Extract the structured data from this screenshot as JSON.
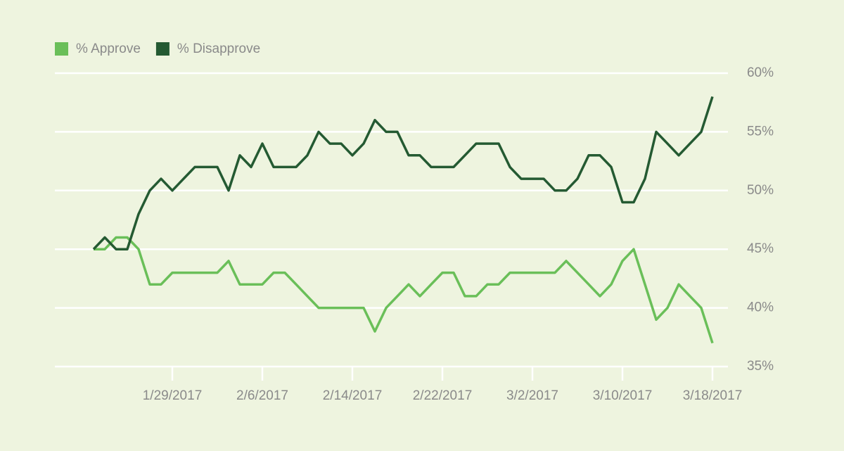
{
  "chart_data": {
    "type": "line",
    "x": [
      "2017-01-22",
      "2017-01-23",
      "2017-01-24",
      "2017-01-25",
      "2017-01-26",
      "2017-01-27",
      "2017-01-28",
      "2017-01-29",
      "2017-01-30",
      "2017-01-31",
      "2017-02-01",
      "2017-02-02",
      "2017-02-03",
      "2017-02-04",
      "2017-02-05",
      "2017-02-06",
      "2017-02-07",
      "2017-02-08",
      "2017-02-09",
      "2017-02-10",
      "2017-02-11",
      "2017-02-12",
      "2017-02-13",
      "2017-02-14",
      "2017-02-15",
      "2017-02-16",
      "2017-02-17",
      "2017-02-18",
      "2017-02-19",
      "2017-02-20",
      "2017-02-21",
      "2017-02-22",
      "2017-02-23",
      "2017-02-24",
      "2017-02-25",
      "2017-02-26",
      "2017-02-27",
      "2017-02-28",
      "2017-03-01",
      "2017-03-02",
      "2017-03-03",
      "2017-03-04",
      "2017-03-05",
      "2017-03-06",
      "2017-03-07",
      "2017-03-08",
      "2017-03-09",
      "2017-03-10",
      "2017-03-11",
      "2017-03-12",
      "2017-03-13",
      "2017-03-14",
      "2017-03-15",
      "2017-03-16",
      "2017-03-17",
      "2017-03-18"
    ],
    "series": [
      {
        "name": "% Approve",
        "color": "#6abf59",
        "values": [
          45,
          45,
          46,
          46,
          45,
          42,
          42,
          43,
          43,
          43,
          43,
          43,
          44,
          42,
          42,
          42,
          43,
          43,
          42,
          41,
          40,
          40,
          40,
          40,
          40,
          38,
          40,
          41,
          42,
          41,
          42,
          43,
          43,
          41,
          41,
          42,
          42,
          43,
          43,
          43,
          43,
          43,
          44,
          43,
          42,
          41,
          42,
          44,
          45,
          42,
          39,
          40,
          42,
          41,
          40,
          37
        ]
      },
      {
        "name": "% Disapprove",
        "color": "#245a32",
        "values": [
          45,
          46,
          45,
          45,
          48,
          50,
          51,
          50,
          51,
          52,
          52,
          52,
          50,
          53,
          52,
          54,
          52,
          52,
          52,
          53,
          55,
          54,
          54,
          53,
          54,
          56,
          55,
          55,
          53,
          53,
          52,
          52,
          52,
          53,
          54,
          54,
          54,
          52,
          51,
          51,
          51,
          50,
          50,
          51,
          53,
          53,
          52,
          49,
          49,
          51,
          55,
          54,
          53,
          54,
          55,
          58
        ]
      }
    ],
    "xlim": [
      "2017-01-19",
      "2017-03-21"
    ],
    "xticks": [
      {
        "value": "2017-01-29",
        "label": "1/29/2017"
      },
      {
        "value": "2017-02-06",
        "label": "2/6/2017"
      },
      {
        "value": "2017-02-14",
        "label": "2/14/2017"
      },
      {
        "value": "2017-02-22",
        "label": "2/22/2017"
      },
      {
        "value": "2017-03-02",
        "label": "3/2/2017"
      },
      {
        "value": "2017-03-10",
        "label": "3/10/2017"
      },
      {
        "value": "2017-03-18",
        "label": "3/18/2017"
      }
    ],
    "ylim": [
      35,
      60
    ],
    "yticks": [
      {
        "value": 35,
        "label": "35%"
      },
      {
        "value": 40,
        "label": "40%"
      },
      {
        "value": 45,
        "label": "45%"
      },
      {
        "value": 50,
        "label": "50%"
      },
      {
        "value": 55,
        "label": "55%"
      },
      {
        "value": 60,
        "label": "60%"
      }
    ],
    "grid": true,
    "legend": "top-left"
  }
}
